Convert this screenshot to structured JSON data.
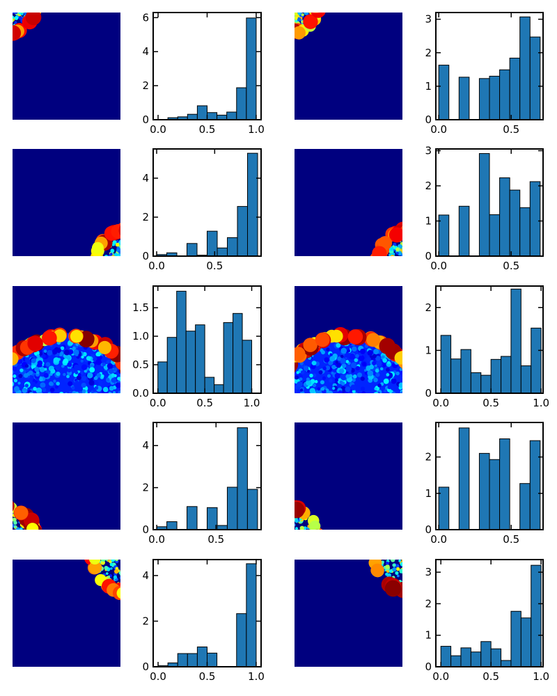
{
  "figure": {
    "grid": "5 rows x 2 pairs (heatmap image + histogram)",
    "heatmap_colormap": "jet",
    "heatmap_background": "#00007f",
    "bar_color": "#1f77b4",
    "bar_edge_color": "#000000"
  },
  "chart_data": [
    {
      "type": "heatmap",
      "panel": "r1-left",
      "description_kind": "blob-arc",
      "corner": "top-left"
    },
    {
      "type": "bar",
      "panel": "r1-left-hist",
      "bin_start": 0.0,
      "bin_width": 0.1,
      "values": [
        0.0,
        0.12,
        0.17,
        0.32,
        0.82,
        0.42,
        0.27,
        0.45,
        1.88,
        5.98
      ],
      "xlim": [
        -0.05,
        1.05
      ],
      "ylim": [
        0,
        6.3
      ],
      "xticks": [
        0.0,
        0.5,
        1.0
      ],
      "xtick_labels": [
        "0.0",
        "0.5",
        "1.0"
      ],
      "yticks": [
        0,
        2,
        4,
        6
      ],
      "ytick_labels": [
        "0",
        "2",
        "4",
        "6"
      ]
    },
    {
      "type": "heatmap",
      "panel": "r1-right",
      "description_kind": "blob-arc",
      "corner": "top-left"
    },
    {
      "type": "bar",
      "panel": "r1-right-hist",
      "bin_start": 0.0,
      "bin_width": 0.07,
      "values": [
        1.63,
        0,
        1.27,
        0,
        1.23,
        1.3,
        1.49,
        1.84,
        3.07,
        2.47
      ],
      "xlim": [
        -0.02,
        0.72
      ],
      "ylim": [
        0,
        3.2
      ],
      "xticks": [
        0.0,
        0.5
      ],
      "xtick_labels": [
        "0.0",
        "0.5"
      ],
      "yticks": [
        0,
        1,
        2,
        3
      ],
      "ytick_labels": [
        "0",
        "1",
        "2",
        "3"
      ]
    },
    {
      "type": "heatmap",
      "panel": "r2-left",
      "description_kind": "blob-arc",
      "corner": "bottom-right"
    },
    {
      "type": "bar",
      "panel": "r2-left-hist",
      "bin_start": 0.0,
      "bin_width": 0.087,
      "values": [
        0.08,
        0.17,
        0.0,
        0.65,
        0.05,
        1.28,
        0.42,
        0.95,
        2.55,
        5.28
      ],
      "xlim": [
        -0.03,
        0.9
      ],
      "ylim": [
        0,
        5.5
      ],
      "xticks": [
        0.0,
        0.5
      ],
      "xtick_labels": [
        "0.0",
        "0.5"
      ],
      "yticks": [
        0,
        2,
        4
      ],
      "ytick_labels": [
        "0",
        "2",
        "4"
      ]
    },
    {
      "type": "heatmap",
      "panel": "r2-right",
      "description_kind": "blob-arc",
      "corner": "bottom-right"
    },
    {
      "type": "bar",
      "panel": "r2-right-hist",
      "bin_start": 0.0,
      "bin_width": 0.07,
      "values": [
        1.17,
        0,
        1.42,
        0,
        2.92,
        1.18,
        2.23,
        1.88,
        1.38,
        2.12
      ],
      "xlim": [
        -0.02,
        0.72
      ],
      "ylim": [
        0,
        3.05
      ],
      "xticks": [
        0.0,
        0.5
      ],
      "xtick_labels": [
        "0.0",
        "0.5"
      ],
      "yticks": [
        0,
        1,
        2,
        3
      ],
      "ytick_labels": [
        "0",
        "1",
        "2",
        "3"
      ]
    },
    {
      "type": "heatmap",
      "panel": "r3-left",
      "description_kind": "dome",
      "corner": "bottom"
    },
    {
      "type": "bar",
      "panel": "r3-left-hist",
      "bin_start": 0.0,
      "bin_width": 0.1,
      "values": [
        0.55,
        0.98,
        1.79,
        1.09,
        1.2,
        0.28,
        0.15,
        1.24,
        1.4,
        0.93
      ],
      "xlim": [
        -0.05,
        1.1
      ],
      "ylim": [
        0,
        1.88
      ],
      "xticks": [
        0.0,
        0.5,
        1.0
      ],
      "xtick_labels": [
        "0.0",
        "0.5",
        "1.0"
      ],
      "yticks": [
        0,
        0.5,
        1.0,
        1.5
      ],
      "ytick_labels": [
        "0.0",
        "0.5",
        "1.0",
        "1.5"
      ]
    },
    {
      "type": "heatmap",
      "panel": "r3-right",
      "description_kind": "dome",
      "corner": "bottom"
    },
    {
      "type": "bar",
      "panel": "r3-right-hist",
      "bin_start": 0.0,
      "bin_width": 0.1,
      "values": [
        1.35,
        0.8,
        1.02,
        0.48,
        0.42,
        0.79,
        0.86,
        2.43,
        0.64,
        1.52
      ],
      "xlim": [
        -0.05,
        1.02
      ],
      "ylim": [
        0,
        2.5
      ],
      "xticks": [
        0.0,
        0.5,
        1.0
      ],
      "xtick_labels": [
        "0.0",
        "0.5",
        "1.0"
      ],
      "yticks": [
        0,
        1,
        2
      ],
      "ytick_labels": [
        "0",
        "1",
        "2"
      ]
    },
    {
      "type": "heatmap",
      "panel": "r4-left",
      "description_kind": "blob-arc",
      "corner": "bottom-left"
    },
    {
      "type": "bar",
      "panel": "r4-left-hist",
      "bin_start": 0.0,
      "bin_width": 0.085,
      "values": [
        0.14,
        0.38,
        0.0,
        1.1,
        0.0,
        1.05,
        0.2,
        2.02,
        4.85,
        1.92
      ],
      "xlim": [
        -0.03,
        0.88
      ],
      "ylim": [
        0,
        5.1
      ],
      "xticks": [
        0.0,
        0.5
      ],
      "xtick_labels": [
        "0.0",
        "0.5"
      ],
      "yticks": [
        0,
        2,
        4
      ],
      "ytick_labels": [
        "0",
        "2",
        "4"
      ]
    },
    {
      "type": "heatmap",
      "panel": "r4-right",
      "description_kind": "blob-arc",
      "corner": "bottom-left"
    },
    {
      "type": "bar",
      "panel": "r4-right-hist",
      "bin_start": 0.0,
      "bin_width": 0.07,
      "values": [
        1.17,
        0,
        2.8,
        0,
        2.1,
        1.93,
        2.5,
        0,
        1.27,
        2.45
      ],
      "xlim": [
        -0.02,
        0.72
      ],
      "ylim": [
        0,
        2.95
      ],
      "xticks": [
        0.0,
        0.5
      ],
      "xtick_labels": [
        "0.0",
        "0.5"
      ],
      "yticks": [
        0,
        1,
        2
      ],
      "ytick_labels": [
        "0",
        "1",
        "2"
      ]
    },
    {
      "type": "heatmap",
      "panel": "r5-left",
      "description_kind": "blob-arc",
      "corner": "top-right"
    },
    {
      "type": "bar",
      "panel": "r5-left-hist",
      "bin_start": 0.0,
      "bin_width": 0.1,
      "values": [
        0.05,
        0.17,
        0.58,
        0.58,
        0.87,
        0.6,
        0.0,
        0.0,
        2.33,
        4.52
      ],
      "xlim": [
        -0.05,
        1.05
      ],
      "ylim": [
        0,
        4.7
      ],
      "xticks": [
        0.0,
        0.5,
        1.0
      ],
      "xtick_labels": [
        "0.0",
        "0.5",
        "1.0"
      ],
      "yticks": [
        0,
        2,
        4
      ],
      "ytick_labels": [
        "0",
        "2",
        "4"
      ]
    },
    {
      "type": "heatmap",
      "panel": "r5-right",
      "description_kind": "blob-arc",
      "corner": "top-right"
    },
    {
      "type": "bar",
      "panel": "r5-right-hist",
      "bin_start": 0.0,
      "bin_width": 0.1,
      "values": [
        0.65,
        0.35,
        0.6,
        0.47,
        0.8,
        0.57,
        0.2,
        1.76,
        1.55,
        3.22
      ],
      "xlim": [
        -0.05,
        1.02
      ],
      "ylim": [
        0,
        3.4
      ],
      "xticks": [
        0.0,
        0.5,
        1.0
      ],
      "xtick_labels": [
        "0.0",
        "0.5",
        "1.0"
      ],
      "yticks": [
        0,
        1,
        2,
        3
      ],
      "ytick_labels": [
        "0",
        "1",
        "2",
        "3"
      ]
    }
  ]
}
